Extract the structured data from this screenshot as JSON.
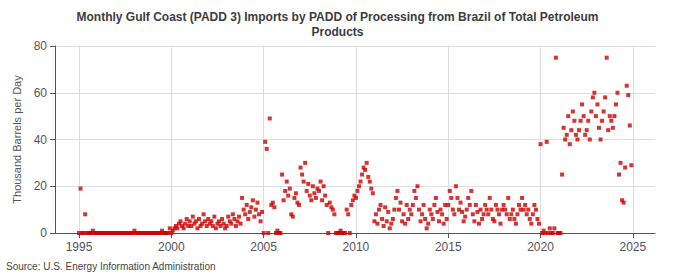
{
  "chart_data": {
    "type": "scatter",
    "title": "Monthly Gulf Coast (PADD 3) Imports by PADD of Processing from Brazil of Total Petroleum\nProducts",
    "ylabel": "Thousand Barrels per Day",
    "source": "Source: U.S. Energy Information Administration",
    "color": "#cc0000",
    "marker": "square",
    "grid": true,
    "xlim": [
      1993.7,
      2026.2
    ],
    "ylim": [
      0,
      80
    ],
    "xticks": [
      1995,
      2000,
      2005,
      2010,
      2015,
      2020,
      2025
    ],
    "yticks": [
      0,
      20,
      40,
      60,
      80
    ],
    "x": [
      1995.0,
      1995.083,
      1995.167,
      1995.25,
      1995.333,
      1995.417,
      1995.5,
      1995.583,
      1995.667,
      1995.75,
      1995.833,
      1995.917,
      1996.0,
      1996.083,
      1996.167,
      1996.25,
      1996.333,
      1996.417,
      1996.5,
      1996.583,
      1996.667,
      1996.75,
      1996.833,
      1996.917,
      1997.0,
      1997.083,
      1997.167,
      1997.25,
      1997.333,
      1997.417,
      1997.5,
      1997.583,
      1997.667,
      1997.75,
      1997.833,
      1997.917,
      1998.0,
      1998.083,
      1998.167,
      1998.25,
      1998.333,
      1998.417,
      1998.5,
      1998.583,
      1998.667,
      1998.75,
      1998.833,
      1998.917,
      1999.0,
      1999.083,
      1999.167,
      1999.25,
      1999.333,
      1999.417,
      1999.5,
      1999.583,
      1999.667,
      1999.75,
      1999.833,
      1999.917,
      2000.0,
      2000.083,
      2000.167,
      2000.25,
      2000.333,
      2000.417,
      2000.5,
      2000.583,
      2000.667,
      2000.75,
      2000.833,
      2000.917,
      2001.0,
      2001.083,
      2001.167,
      2001.25,
      2001.333,
      2001.417,
      2001.5,
      2001.583,
      2001.667,
      2001.75,
      2001.833,
      2001.917,
      2002.0,
      2002.083,
      2002.167,
      2002.25,
      2002.333,
      2002.417,
      2002.5,
      2002.583,
      2002.667,
      2002.75,
      2002.833,
      2002.917,
      2003.0,
      2003.083,
      2003.167,
      2003.25,
      2003.333,
      2003.417,
      2003.5,
      2003.583,
      2003.667,
      2003.75,
      2003.833,
      2003.917,
      2004.0,
      2004.083,
      2004.167,
      2004.25,
      2004.333,
      2004.417,
      2004.5,
      2004.583,
      2004.667,
      2004.75,
      2004.833,
      2004.917,
      2005.0,
      2005.083,
      2005.167,
      2005.25,
      2005.333,
      2005.417,
      2005.5,
      2005.583,
      2005.667,
      2005.75,
      2005.833,
      2005.917,
      2006.0,
      2006.083,
      2006.167,
      2006.25,
      2006.333,
      2006.417,
      2006.5,
      2006.583,
      2006.667,
      2006.75,
      2006.833,
      2006.917,
      2007.0,
      2007.083,
      2007.167,
      2007.25,
      2007.333,
      2007.417,
      2007.5,
      2007.583,
      2007.667,
      2007.75,
      2007.833,
      2007.917,
      2008.0,
      2008.083,
      2008.167,
      2008.25,
      2008.333,
      2008.417,
      2008.5,
      2008.583,
      2008.667,
      2008.75,
      2008.833,
      2008.917,
      2009.0,
      2009.083,
      2009.167,
      2009.25,
      2009.333,
      2009.417,
      2009.5,
      2009.583,
      2009.667,
      2009.75,
      2009.833,
      2009.917,
      2010.0,
      2010.083,
      2010.167,
      2010.25,
      2010.333,
      2010.417,
      2010.5,
      2010.583,
      2010.667,
      2010.75,
      2010.833,
      2010.917,
      2011.0,
      2011.083,
      2011.167,
      2011.25,
      2011.333,
      2011.417,
      2011.5,
      2011.583,
      2011.667,
      2011.75,
      2011.833,
      2011.917,
      2012.0,
      2012.083,
      2012.167,
      2012.25,
      2012.333,
      2012.417,
      2012.5,
      2012.583,
      2012.667,
      2012.75,
      2012.833,
      2012.917,
      2013.0,
      2013.083,
      2013.167,
      2013.25,
      2013.333,
      2013.417,
      2013.5,
      2013.583,
      2013.667,
      2013.75,
      2013.833,
      2013.917,
      2014.0,
      2014.083,
      2014.167,
      2014.25,
      2014.333,
      2014.417,
      2014.5,
      2014.583,
      2014.667,
      2014.75,
      2014.833,
      2014.917,
      2015.0,
      2015.083,
      2015.167,
      2015.25,
      2015.333,
      2015.417,
      2015.5,
      2015.583,
      2015.667,
      2015.75,
      2015.833,
      2015.917,
      2016.0,
      2016.083,
      2016.167,
      2016.25,
      2016.333,
      2016.417,
      2016.5,
      2016.583,
      2016.667,
      2016.75,
      2016.833,
      2016.917,
      2017.0,
      2017.083,
      2017.167,
      2017.25,
      2017.333,
      2017.417,
      2017.5,
      2017.583,
      2017.667,
      2017.75,
      2017.833,
      2017.917,
      2018.0,
      2018.083,
      2018.167,
      2018.25,
      2018.333,
      2018.417,
      2018.5,
      2018.583,
      2018.667,
      2018.75,
      2018.833,
      2018.917,
      2019.0,
      2019.083,
      2019.167,
      2019.25,
      2019.333,
      2019.417,
      2019.5,
      2019.583,
      2019.667,
      2019.75,
      2019.833,
      2019.917,
      2020.0,
      2020.083,
      2020.167,
      2020.25,
      2020.333,
      2020.417,
      2020.5,
      2020.583,
      2020.667,
      2020.75,
      2020.833,
      2020.917,
      2021.0,
      2021.083,
      2021.167,
      2021.25,
      2021.333,
      2021.417,
      2021.5,
      2021.583,
      2021.667,
      2021.75,
      2021.833,
      2021.917,
      2022.0,
      2022.083,
      2022.167,
      2022.25,
      2022.333,
      2022.417,
      2022.5,
      2022.583,
      2022.667,
      2022.75,
      2022.833,
      2022.917,
      2023.0,
      2023.083,
      2023.167,
      2023.25,
      2023.333,
      2023.417,
      2023.5,
      2023.583,
      2023.667,
      2023.75,
      2023.833,
      2023.917,
      2024.0,
      2024.083,
      2024.167,
      2024.25,
      2024.333,
      2024.417,
      2024.5,
      2024.583,
      2024.667,
      2024.75,
      2024.833,
      2024.917
    ],
    "values": [
      0,
      19,
      0,
      0,
      8,
      0,
      0,
      0,
      0,
      1,
      0,
      0,
      0,
      0,
      0,
      0,
      0,
      0,
      0,
      0,
      0,
      0,
      0,
      0,
      0,
      0,
      0,
      0,
      0,
      0,
      0,
      0,
      0,
      0,
      0,
      0,
      1,
      0,
      0,
      0,
      0,
      0,
      0,
      0,
      0,
      0,
      0,
      0,
      0,
      0,
      0,
      0,
      0,
      0,
      1,
      0,
      0,
      0,
      0,
      2,
      0,
      1,
      2,
      3,
      2,
      4,
      5,
      3,
      2,
      4,
      6,
      3,
      5,
      3,
      7,
      4,
      5,
      2,
      6,
      3,
      4,
      8,
      5,
      3,
      6,
      4,
      5,
      3,
      7,
      2,
      4,
      5,
      3,
      6,
      4,
      2,
      3,
      7,
      5,
      4,
      8,
      6,
      3,
      5,
      7,
      4,
      15,
      10,
      8,
      12,
      6,
      9,
      11,
      14,
      7,
      10,
      13,
      8,
      5,
      9,
      0,
      39,
      36,
      0,
      49,
      12,
      13,
      11,
      0,
      1,
      0,
      0,
      25,
      14,
      18,
      22,
      16,
      19,
      8,
      7,
      15,
      17,
      13,
      12,
      28,
      25,
      22,
      30,
      18,
      21,
      16,
      14,
      20,
      17,
      15,
      19,
      18,
      22,
      14,
      20,
      16,
      12,
      0,
      13,
      11,
      10,
      8,
      0,
      0,
      0,
      1,
      0,
      0,
      0,
      10,
      8,
      0,
      12,
      14,
      16,
      15,
      18,
      20,
      22,
      25,
      28,
      27,
      30,
      24,
      22,
      19,
      17,
      5,
      8,
      4,
      10,
      12,
      6,
      3,
      11,
      5,
      9,
      2,
      4,
      6,
      10,
      15,
      18,
      10,
      13,
      5,
      8,
      4,
      12,
      6,
      10,
      8,
      12,
      18,
      15,
      20,
      10,
      5,
      8,
      12,
      6,
      2,
      4,
      10,
      8,
      6,
      12,
      15,
      9,
      5,
      10,
      8,
      4,
      12,
      6,
      12,
      18,
      15,
      10,
      8,
      20,
      15,
      10,
      13,
      9,
      5,
      7,
      10,
      15,
      12,
      18,
      8,
      5,
      12,
      9,
      4,
      10,
      6,
      8,
      12,
      10,
      8,
      15,
      10,
      6,
      5,
      12,
      10,
      8,
      4,
      10,
      12,
      10,
      8,
      15,
      6,
      8,
      10,
      6,
      4,
      8,
      12,
      10,
      15,
      10,
      12,
      8,
      10,
      6,
      4,
      8,
      12,
      10,
      6,
      4,
      38,
      0,
      1,
      0,
      39,
      0,
      2,
      0,
      0,
      2,
      75,
      0,
      0,
      0,
      25,
      45,
      40,
      42,
      50,
      38,
      44,
      52,
      48,
      42,
      40,
      44,
      48,
      55,
      50,
      42,
      44,
      48,
      40,
      52,
      58,
      60,
      50,
      55,
      45,
      40,
      48,
      52,
      58,
      75,
      44,
      50,
      48,
      45,
      50,
      55,
      60,
      25,
      30,
      14,
      13,
      28,
      63,
      59,
      46,
      29
    ]
  }
}
